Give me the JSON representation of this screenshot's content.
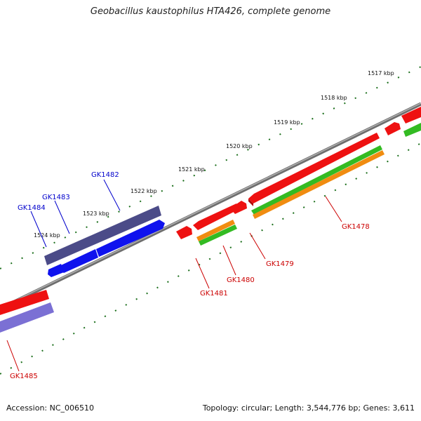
{
  "title": "Geobacillus kaustophilus HTA426, complete genome",
  "footer": {
    "accession": "Accession: NC_006510",
    "summary": "Topology: circular; Length: 3,544,776 bp; Genes: 3,611"
  },
  "colors": {
    "backbone": "#8a8a8a",
    "tick": "#1a6e1a",
    "red_gene": "#ee1111",
    "navy_gene": "#4b4b88",
    "blue_gene": "#0f12ee",
    "lavender_gene": "#7b70d4",
    "green_gene": "#33bb22",
    "orange_gene": "#f08c10",
    "label_red": "#cc0000",
    "label_blue": "#0000cc"
  },
  "scale_labels": [
    "1517 kbp",
    "1518 kbp",
    "1519 kbp",
    "1520 kbp",
    "1521 kbp",
    "1522 kbp",
    "1523 kbp",
    "1524 kbp"
  ],
  "gene_labels": [
    {
      "text": "GK1482",
      "color": "blue"
    },
    {
      "text": "GK1483",
      "color": "blue"
    },
    {
      "text": "GK1484",
      "color": "blue"
    },
    {
      "text": "GK1478",
      "color": "red"
    },
    {
      "text": "GK1479",
      "color": "red"
    },
    {
      "text": "GK1480",
      "color": "red"
    },
    {
      "text": "GK1481",
      "color": "red"
    },
    {
      "text": "GK1485",
      "color": "red"
    }
  ]
}
